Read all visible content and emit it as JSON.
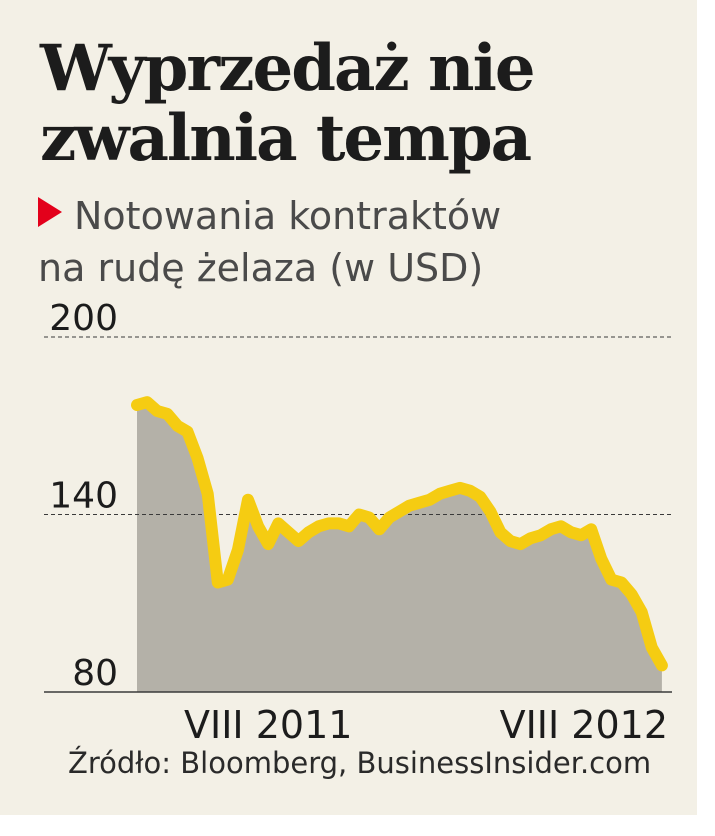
{
  "title": {
    "line1": "Wyprzedaż nie",
    "line2": "zwalnia tempa"
  },
  "subtitle": {
    "line1": "Notowania kontraktów",
    "line2": "na rudę żelaza (w USD)"
  },
  "source": "Źródło: Bloomberg, BusinessInsider.com",
  "colors": {
    "background": "#f3f0e6",
    "area": "#b4b1a8",
    "line": "#f5cc12",
    "marker": "#e3001b",
    "text": "#1c1c1c"
  },
  "chart_data": {
    "type": "area",
    "ylim": [
      80,
      200
    ],
    "yticks": [
      200,
      140,
      80
    ],
    "xlim": [
      0,
      53
    ],
    "xticks": [
      {
        "label": "VIII 2011",
        "x": 13
      },
      {
        "label": "VIII 2012",
        "x": 49
      }
    ],
    "x_unit": "weeks since start of series",
    "values": [
      177,
      178,
      175,
      174,
      170,
      168,
      159,
      147,
      117,
      118,
      128,
      145,
      136,
      130,
      137,
      134,
      131,
      134,
      136,
      137,
      137,
      136,
      140,
      139,
      135,
      139,
      141,
      143,
      144,
      145,
      147,
      148,
      149,
      148,
      146,
      141,
      134,
      131,
      130,
      132,
      133,
      135,
      136,
      134,
      133,
      135,
      125,
      118,
      117,
      113,
      107,
      95,
      89
    ]
  }
}
